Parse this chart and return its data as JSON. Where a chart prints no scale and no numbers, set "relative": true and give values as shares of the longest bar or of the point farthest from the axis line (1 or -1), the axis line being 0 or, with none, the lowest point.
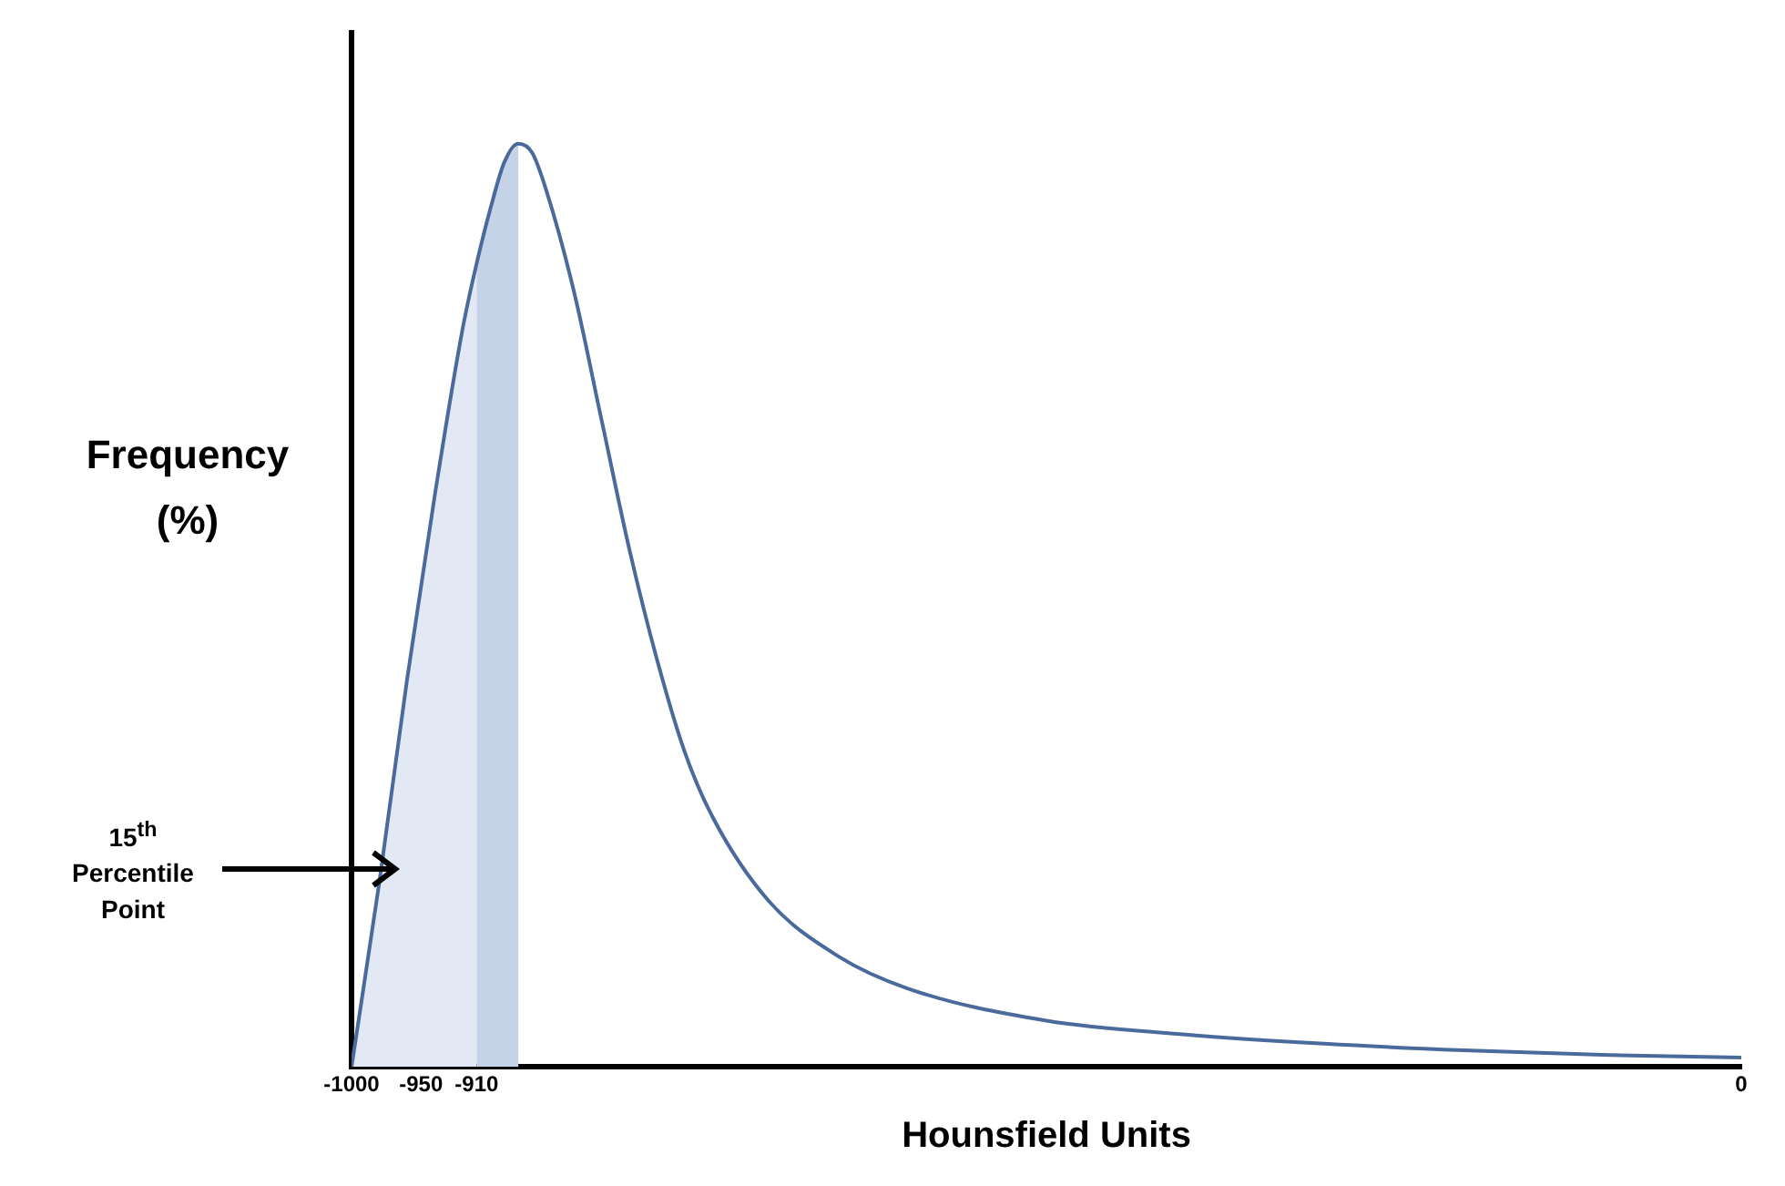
{
  "chart_data": {
    "type": "line",
    "xlabel": "Hounsfield Units",
    "ylabel": "Frequency (%)",
    "relative": true,
    "x": [
      -1000,
      -980,
      -960,
      -940,
      -920,
      -910,
      -900,
      -890,
      -880,
      -870,
      -860,
      -840,
      -820,
      -800,
      -780,
      -760,
      -740,
      -700,
      -650,
      -600,
      -500,
      -400,
      -300,
      -200,
      -100,
      0
    ],
    "values": [
      0,
      0.2,
      0.42,
      0.62,
      0.8,
      0.87,
      0.93,
      0.98,
      1,
      0.99,
      0.95,
      0.84,
      0.7,
      0.56,
      0.44,
      0.34,
      0.27,
      0.18,
      0.12,
      0.085,
      0.05,
      0.035,
      0.025,
      0.018,
      0.013,
      0.01
    ],
    "color": "#4a6a9c",
    "xlim": [
      -1000,
      0
    ],
    "xticks": [
      -1000,
      -950,
      -910,
      0
    ],
    "legend": false,
    "marker": "none",
    "bands": [
      {
        "axis": "x",
        "from": -1000,
        "to": -910,
        "color": "#e2e9f4"
      },
      {
        "axis": "x",
        "from": -910,
        "to": -880,
        "color": "#c5d3e8"
      }
    ],
    "annotations": [
      "15$^{th}$ Percentile Point"
    ]
  }
}
